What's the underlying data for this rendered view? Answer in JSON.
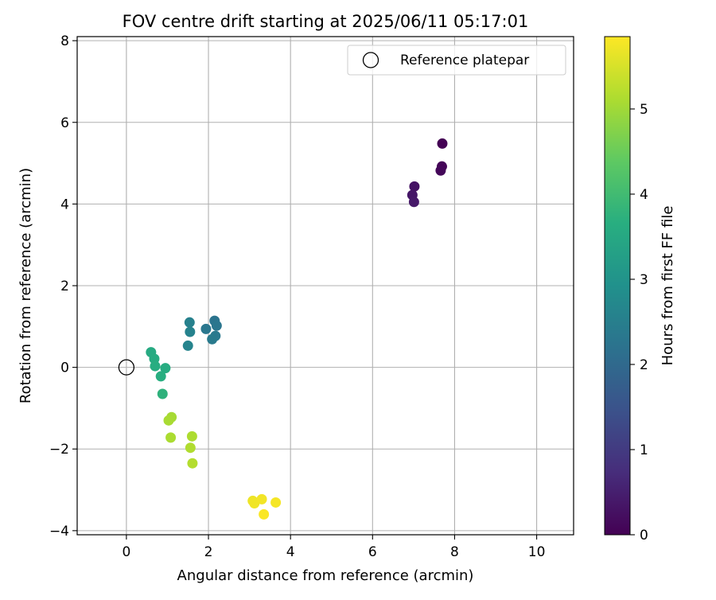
{
  "chart_data": {
    "type": "scatter",
    "title": "FOV centre drift starting at 2025/06/11 05:17:01",
    "xlabel": "Angular distance from reference (arcmin)",
    "ylabel": "Rotation from reference (arcmin)",
    "xlim": [
      -1.2,
      10.9
    ],
    "ylim": [
      -4.1,
      8.1
    ],
    "xticks": [
      0,
      2,
      4,
      6,
      8,
      10
    ],
    "yticks": [
      -4,
      -2,
      0,
      2,
      4,
      6,
      8
    ],
    "grid": true,
    "legend": {
      "placement": "top-right",
      "entries": [
        "Reference platepar"
      ]
    },
    "reference_point": {
      "name": "Reference platepar",
      "x": 0,
      "y": 0
    },
    "colorbar": {
      "label": "Hours from first FF file",
      "range": [
        0,
        5.85
      ],
      "ticks": [
        0,
        1,
        2,
        3,
        4,
        5
      ],
      "colormap": "viridis"
    },
    "series": [
      {
        "points": [
          {
            "x": 7.7,
            "y": 5.48,
            "t": 0.0
          },
          {
            "x": 7.69,
            "y": 4.92,
            "t": 0.05
          },
          {
            "x": 7.66,
            "y": 4.82,
            "t": 0.1
          },
          {
            "x": 7.02,
            "y": 4.43,
            "t": 0.3
          },
          {
            "x": 6.97,
            "y": 4.22,
            "t": 0.35
          },
          {
            "x": 7.01,
            "y": 4.05,
            "t": 0.4
          },
          {
            "x": 2.15,
            "y": 1.14,
            "t": 2.25
          },
          {
            "x": 2.2,
            "y": 1.02,
            "t": 2.28
          },
          {
            "x": 1.94,
            "y": 0.94,
            "t": 2.32
          },
          {
            "x": 2.17,
            "y": 0.77,
            "t": 2.35
          },
          {
            "x": 2.09,
            "y": 0.69,
            "t": 2.38
          },
          {
            "x": 1.54,
            "y": 1.1,
            "t": 2.55
          },
          {
            "x": 1.55,
            "y": 0.87,
            "t": 2.58
          },
          {
            "x": 1.5,
            "y": 0.53,
            "t": 2.62
          },
          {
            "x": 0.6,
            "y": 0.37,
            "t": 3.55
          },
          {
            "x": 0.68,
            "y": 0.21,
            "t": 3.58
          },
          {
            "x": 0.7,
            "y": 0.03,
            "t": 3.62
          },
          {
            "x": 0.95,
            "y": -0.02,
            "t": 3.6
          },
          {
            "x": 0.84,
            "y": -0.22,
            "t": 3.65
          },
          {
            "x": 0.88,
            "y": -0.65,
            "t": 3.75
          },
          {
            "x": 1.1,
            "y": -1.22,
            "t": 5.05
          },
          {
            "x": 1.03,
            "y": -1.3,
            "t": 5.08
          },
          {
            "x": 1.08,
            "y": -1.72,
            "t": 5.1
          },
          {
            "x": 1.6,
            "y": -1.69,
            "t": 5.12
          },
          {
            "x": 1.56,
            "y": -1.97,
            "t": 5.15
          },
          {
            "x": 1.61,
            "y": -2.35,
            "t": 5.18
          },
          {
            "x": 3.08,
            "y": -3.27,
            "t": 5.7
          },
          {
            "x": 3.12,
            "y": -3.33,
            "t": 5.73
          },
          {
            "x": 3.3,
            "y": -3.23,
            "t": 5.75
          },
          {
            "x": 3.64,
            "y": -3.31,
            "t": 5.78
          },
          {
            "x": 3.35,
            "y": -3.6,
            "t": 5.82
          }
        ]
      }
    ]
  }
}
